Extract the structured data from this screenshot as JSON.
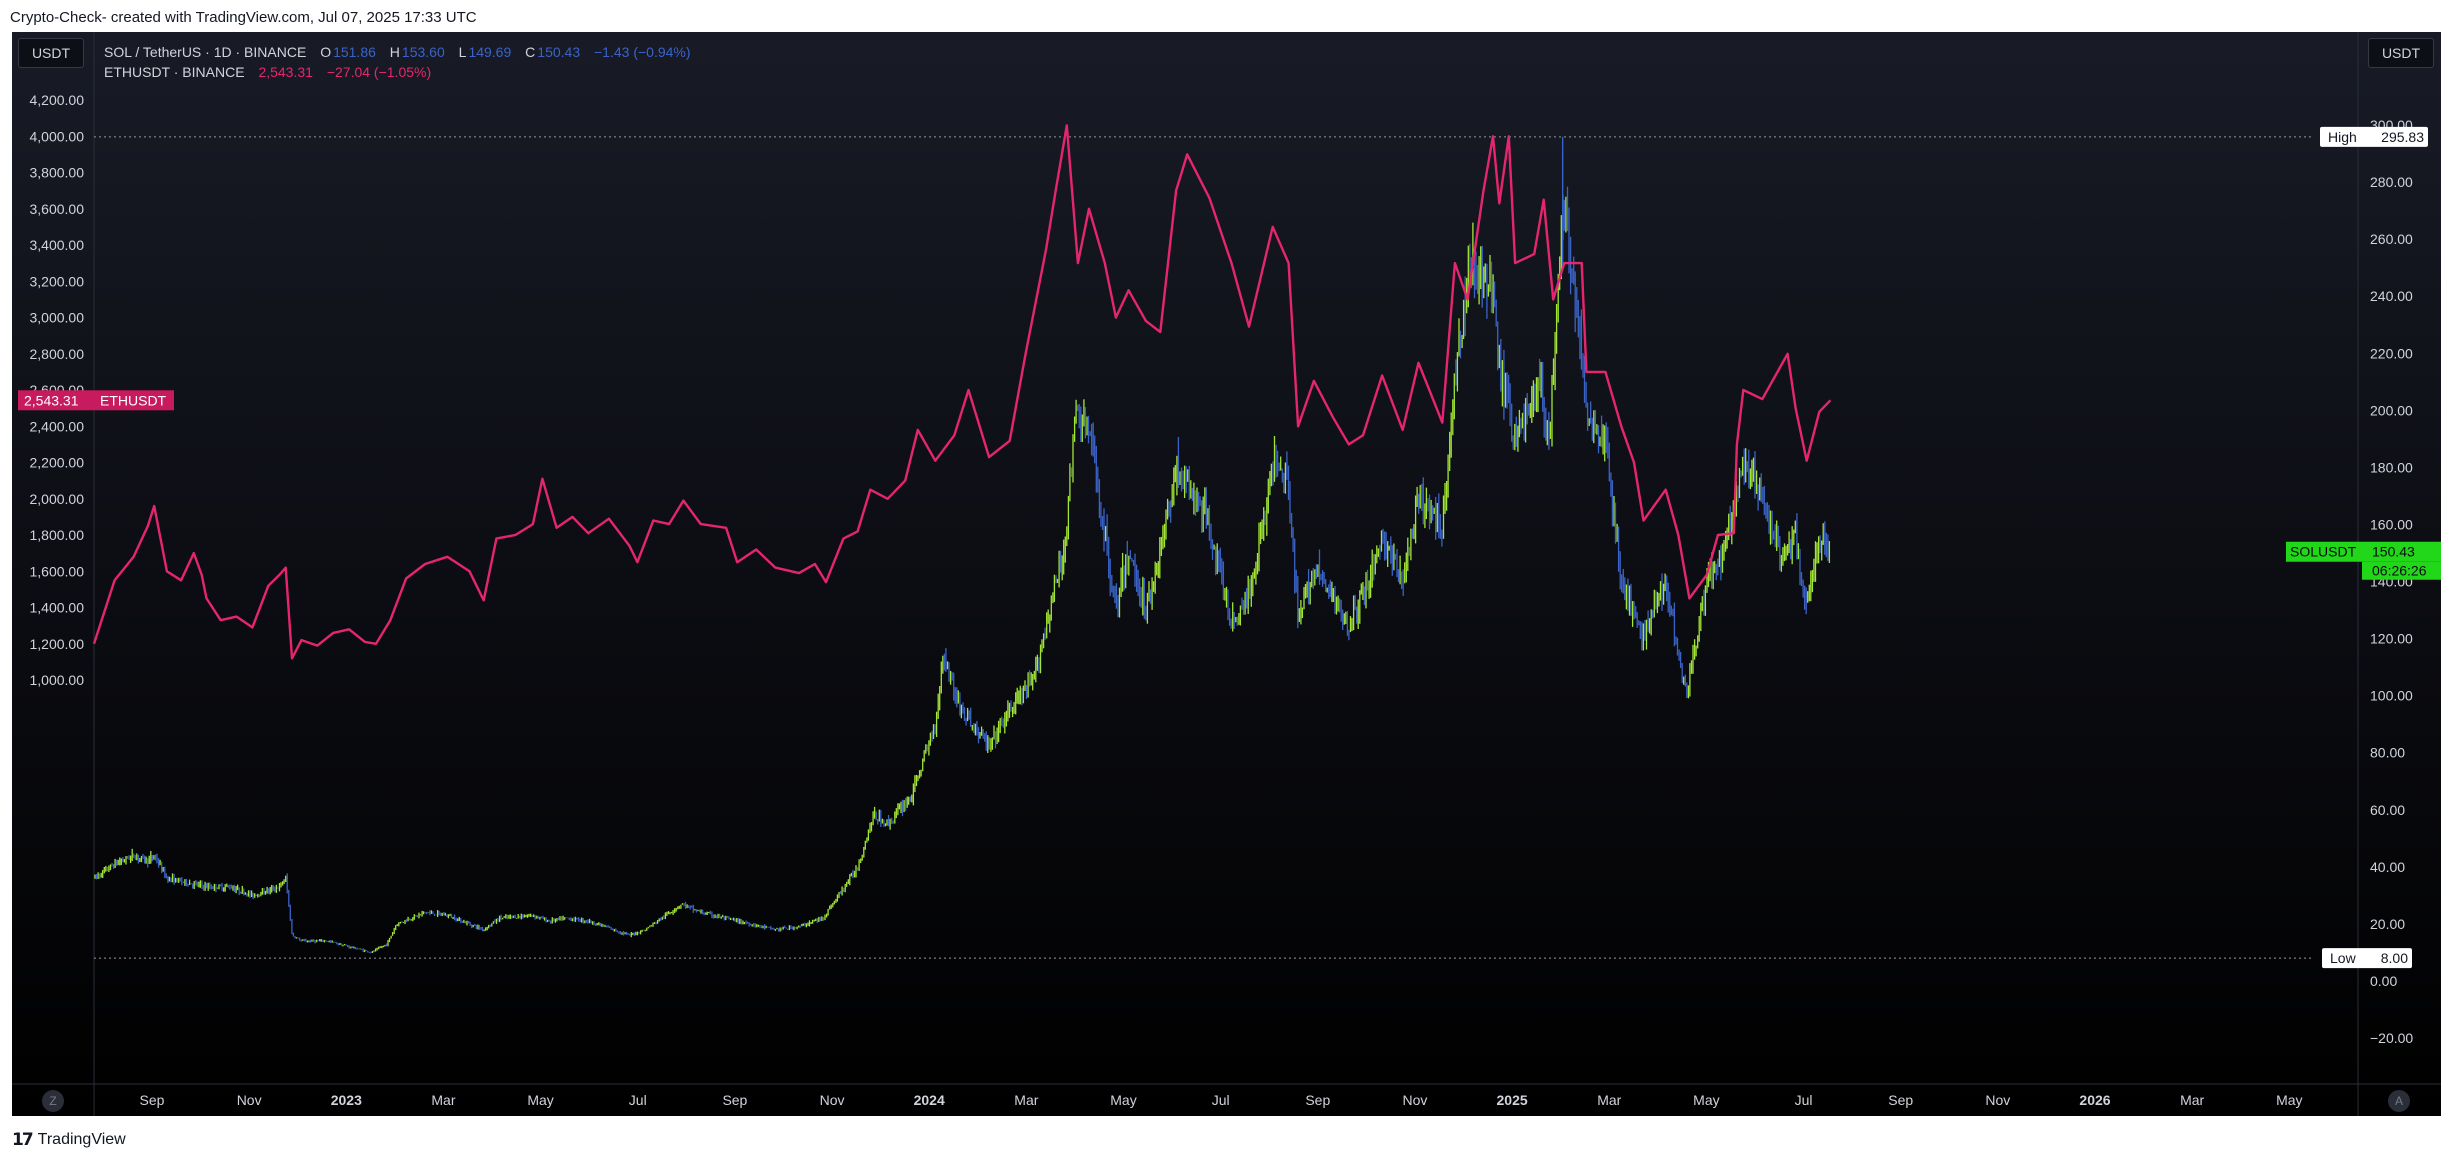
{
  "header": {
    "caption": "Crypto-Check- created with TradingView.com, Jul 07, 2025 17:33 UTC"
  },
  "currency_badges": {
    "left": "USDT",
    "right": "USDT"
  },
  "legend": {
    "sol": {
      "name": "SOL / TetherUS · 1D · BINANCE",
      "o_label": "O",
      "o_value": "151.86",
      "h_label": "H",
      "h_value": "153.60",
      "l_label": "L",
      "l_value": "149.69",
      "c_label": "C",
      "c_value": "150.43",
      "change": "−1.43 (−0.94%)"
    },
    "eth": {
      "name": "ETHUSDT · BINANCE",
      "last": "2,543.31",
      "change": "−27.04 (−1.05%)"
    }
  },
  "markers": {
    "high_label": "High",
    "high_value": "295.83",
    "low_label": "Low",
    "low_value": "8.00",
    "eth_price_tag": "2,543.31",
    "eth_ticker_tag": "ETHUSDT",
    "sol_ticker_tag": "SOLUSDT",
    "sol_price_tag": "150.43",
    "sol_countdown": "06:26:26"
  },
  "buttons": {
    "left_corner": "Z",
    "right_corner": "A"
  },
  "footer": {
    "brand": "TradingView"
  },
  "colors": {
    "background_top": "#181b26",
    "background_bottom": "#000000",
    "eth_line": "#e5266f",
    "sol_up": "#a3e635",
    "sol_down": "#3a63c8",
    "sol_tag": "#22d61a",
    "eth_tag": "#c81a5e",
    "axis_text": "#d1d4dc"
  },
  "chart_data": {
    "type": "line",
    "x_ticks": [
      "Sep",
      "Nov",
      "2023",
      "Mar",
      "May",
      "Jul",
      "Sep",
      "Nov",
      "2024",
      "Mar",
      "May",
      "Jul",
      "Sep",
      "Nov",
      "2025",
      "Mar",
      "May",
      "Jul",
      "Sep",
      "Nov",
      "2026",
      "Mar",
      "May"
    ],
    "left_axis": {
      "label": "USDT",
      "ticks": [
        "4,200.00",
        "4,000.00",
        "3,800.00",
        "3,600.00",
        "3,400.00",
        "3,200.00",
        "3,000.00",
        "2,800.00",
        "2,600.00",
        "2,400.00",
        "2,200.00",
        "2,000.00",
        "1,800.00",
        "1,600.00",
        "1,400.00",
        "1,200.00",
        "1,000.00"
      ],
      "ylim": [
        850,
        4250
      ]
    },
    "right_axis": {
      "label": "USDT",
      "ticks": [
        "300.00",
        "280.00",
        "260.00",
        "240.00",
        "220.00",
        "200.00",
        "180.00",
        "160.00",
        "140.00",
        "120.00",
        "100.00",
        "80.00",
        "60.00",
        "40.00",
        "20.00",
        "0.00",
        "−20.00"
      ],
      "ylim": [
        -20,
        300
      ]
    },
    "series": [
      {
        "name": "ETHUSDT",
        "axis": "left",
        "points": [
          [
            "2022-07-07",
            1200
          ],
          [
            "2022-07-20",
            1550
          ],
          [
            "2022-08-01",
            1680
          ],
          [
            "2022-08-10",
            1850
          ],
          [
            "2022-08-14",
            1960
          ],
          [
            "2022-08-22",
            1600
          ],
          [
            "2022-08-31",
            1550
          ],
          [
            "2022-09-08",
            1700
          ],
          [
            "2022-09-13",
            1580
          ],
          [
            "2022-09-16",
            1450
          ],
          [
            "2022-09-25",
            1330
          ],
          [
            "2022-10-05",
            1350
          ],
          [
            "2022-10-15",
            1290
          ],
          [
            "2022-10-25",
            1520
          ],
          [
            "2022-11-01",
            1580
          ],
          [
            "2022-11-05",
            1620
          ],
          [
            "2022-11-09",
            1120
          ],
          [
            "2022-11-15",
            1220
          ],
          [
            "2022-11-25",
            1190
          ],
          [
            "2022-12-05",
            1260
          ],
          [
            "2022-12-15",
            1280
          ],
          [
            "2022-12-25",
            1210
          ],
          [
            "2023-01-01",
            1200
          ],
          [
            "2023-01-10",
            1330
          ],
          [
            "2023-01-20",
            1560
          ],
          [
            "2023-02-01",
            1640
          ],
          [
            "2023-02-15",
            1680
          ],
          [
            "2023-03-01",
            1600
          ],
          [
            "2023-03-10",
            1440
          ],
          [
            "2023-03-18",
            1780
          ],
          [
            "2023-03-30",
            1800
          ],
          [
            "2023-04-10",
            1860
          ],
          [
            "2023-04-16",
            2110
          ],
          [
            "2023-04-25",
            1840
          ],
          [
            "2023-05-05",
            1900
          ],
          [
            "2023-05-15",
            1810
          ],
          [
            "2023-05-28",
            1890
          ],
          [
            "2023-06-10",
            1740
          ],
          [
            "2023-06-15",
            1650
          ],
          [
            "2023-06-25",
            1880
          ],
          [
            "2023-07-05",
            1860
          ],
          [
            "2023-07-14",
            1990
          ],
          [
            "2023-07-25",
            1860
          ],
          [
            "2023-08-10",
            1840
          ],
          [
            "2023-08-17",
            1650
          ],
          [
            "2023-08-29",
            1720
          ],
          [
            "2023-09-10",
            1620
          ],
          [
            "2023-09-25",
            1590
          ],
          [
            "2023-10-05",
            1640
          ],
          [
            "2023-10-12",
            1540
          ],
          [
            "2023-10-23",
            1780
          ],
          [
            "2023-11-01",
            1820
          ],
          [
            "2023-11-09",
            2050
          ],
          [
            "2023-11-20",
            2000
          ],
          [
            "2023-12-01",
            2100
          ],
          [
            "2023-12-09",
            2380
          ],
          [
            "2023-12-20",
            2210
          ],
          [
            "2024-01-01",
            2350
          ],
          [
            "2024-01-10",
            2600
          ],
          [
            "2024-01-23",
            2230
          ],
          [
            "2024-02-05",
            2320
          ],
          [
            "2024-02-15",
            2800
          ],
          [
            "2024-02-28",
            3380
          ],
          [
            "2024-03-05",
            3700
          ],
          [
            "2024-03-12",
            4060
          ],
          [
            "2024-03-19",
            3300
          ],
          [
            "2024-03-26",
            3600
          ],
          [
            "2024-04-05",
            3300
          ],
          [
            "2024-04-12",
            3000
          ],
          [
            "2024-04-20",
            3150
          ],
          [
            "2024-05-01",
            2980
          ],
          [
            "2024-05-10",
            2920
          ],
          [
            "2024-05-20",
            3700
          ],
          [
            "2024-05-27",
            3900
          ],
          [
            "2024-06-10",
            3660
          ],
          [
            "2024-06-24",
            3300
          ],
          [
            "2024-07-05",
            2950
          ],
          [
            "2024-07-20",
            3500
          ],
          [
            "2024-07-30",
            3300
          ],
          [
            "2024-08-05",
            2400
          ],
          [
            "2024-08-15",
            2650
          ],
          [
            "2024-08-27",
            2450
          ],
          [
            "2024-09-06",
            2300
          ],
          [
            "2024-09-15",
            2350
          ],
          [
            "2024-09-27",
            2680
          ],
          [
            "2024-10-10",
            2380
          ],
          [
            "2024-10-20",
            2750
          ],
          [
            "2024-11-04",
            2420
          ],
          [
            "2024-11-12",
            3300
          ],
          [
            "2024-11-20",
            3100
          ],
          [
            "2024-11-30",
            3700
          ],
          [
            "2024-12-06",
            4000
          ],
          [
            "2024-12-10",
            3630
          ],
          [
            "2024-12-16",
            4000
          ],
          [
            "2024-12-20",
            3300
          ],
          [
            "2025-01-01",
            3350
          ],
          [
            "2025-01-07",
            3650
          ],
          [
            "2025-01-13",
            3100
          ],
          [
            "2025-01-20",
            3300
          ],
          [
            "2025-01-31",
            3300
          ],
          [
            "2025-02-03",
            2700
          ],
          [
            "2025-02-15",
            2700
          ],
          [
            "2025-02-25",
            2400
          ],
          [
            "2025-03-05",
            2200
          ],
          [
            "2025-03-11",
            1880
          ],
          [
            "2025-03-25",
            2050
          ],
          [
            "2025-04-02",
            1800
          ],
          [
            "2025-04-09",
            1450
          ],
          [
            "2025-04-20",
            1580
          ],
          [
            "2025-04-27",
            1800
          ],
          [
            "2025-05-07",
            1810
          ],
          [
            "2025-05-09",
            2300
          ],
          [
            "2025-05-13",
            2600
          ],
          [
            "2025-05-25",
            2550
          ],
          [
            "2025-06-10",
            2800
          ],
          [
            "2025-06-15",
            2500
          ],
          [
            "2025-06-22",
            2210
          ],
          [
            "2025-06-30",
            2480
          ],
          [
            "2025-07-07",
            2543.31
          ]
        ]
      },
      {
        "name": "SOLUSDT",
        "axis": "right",
        "points": [
          [
            "2022-07-07",
            36
          ],
          [
            "2022-07-20",
            41
          ],
          [
            "2022-08-01",
            44
          ],
          [
            "2022-08-10",
            42
          ],
          [
            "2022-08-14",
            44
          ],
          [
            "2022-08-22",
            36
          ],
          [
            "2022-09-08",
            34
          ],
          [
            "2022-09-16",
            33
          ],
          [
            "2022-10-01",
            33
          ],
          [
            "2022-10-15",
            30
          ],
          [
            "2022-11-01",
            33
          ],
          [
            "2022-11-05",
            36
          ],
          [
            "2022-11-09",
            16
          ],
          [
            "2022-11-15",
            14
          ],
          [
            "2022-12-01",
            14
          ],
          [
            "2022-12-15",
            12
          ],
          [
            "2022-12-29",
            10
          ],
          [
            "2023-01-08",
            13
          ],
          [
            "2023-01-14",
            20
          ],
          [
            "2023-02-01",
            24
          ],
          [
            "2023-02-15",
            23
          ],
          [
            "2023-03-10",
            18
          ],
          [
            "2023-03-20",
            22
          ],
          [
            "2023-04-10",
            23
          ],
          [
            "2023-04-20",
            21
          ],
          [
            "2023-05-01",
            22
          ],
          [
            "2023-05-15",
            21
          ],
          [
            "2023-06-10",
            16
          ],
          [
            "2023-06-20",
            18
          ],
          [
            "2023-07-13",
            27
          ],
          [
            "2023-07-25",
            24
          ],
          [
            "2023-08-17",
            21
          ],
          [
            "2023-09-10",
            18
          ],
          [
            "2023-09-25",
            19
          ],
          [
            "2023-10-10",
            22
          ],
          [
            "2023-10-20",
            30
          ],
          [
            "2023-11-01",
            40
          ],
          [
            "2023-11-11",
            58
          ],
          [
            "2023-11-20",
            55
          ],
          [
            "2023-12-05",
            65
          ],
          [
            "2023-12-20",
            90
          ],
          [
            "2023-12-25",
            115
          ],
          [
            "2024-01-05",
            95
          ],
          [
            "2024-01-23",
            82
          ],
          [
            "2024-02-05",
            95
          ],
          [
            "2024-02-20",
            105
          ],
          [
            "2024-03-01",
            130
          ],
          [
            "2024-03-10",
            150
          ],
          [
            "2024-03-18",
            200
          ],
          [
            "2024-03-27",
            190
          ],
          [
            "2024-04-12",
            130
          ],
          [
            "2024-04-20",
            150
          ],
          [
            "2024-05-01",
            130
          ],
          [
            "2024-05-10",
            150
          ],
          [
            "2024-05-20",
            180
          ],
          [
            "2024-06-10",
            160
          ],
          [
            "2024-06-24",
            125
          ],
          [
            "2024-07-05",
            135
          ],
          [
            "2024-07-22",
            185
          ],
          [
            "2024-07-30",
            175
          ],
          [
            "2024-08-05",
            125
          ],
          [
            "2024-08-15",
            145
          ],
          [
            "2024-09-06",
            125
          ],
          [
            "2024-09-15",
            135
          ],
          [
            "2024-09-27",
            155
          ],
          [
            "2024-10-10",
            140
          ],
          [
            "2024-10-20",
            168
          ],
          [
            "2024-11-04",
            160
          ],
          [
            "2024-11-12",
            210
          ],
          [
            "2024-11-22",
            255
          ],
          [
            "2024-12-06",
            240
          ],
          [
            "2024-12-10",
            215
          ],
          [
            "2024-12-20",
            190
          ],
          [
            "2025-01-05",
            210
          ],
          [
            "2025-01-10",
            185
          ],
          [
            "2025-01-19",
            270
          ],
          [
            "2025-01-25",
            250
          ],
          [
            "2025-02-03",
            200
          ],
          [
            "2025-02-15",
            190
          ],
          [
            "2025-02-25",
            140
          ],
          [
            "2025-03-10",
            120
          ],
          [
            "2025-03-25",
            140
          ],
          [
            "2025-04-07",
            100
          ],
          [
            "2025-04-20",
            140
          ],
          [
            "2025-05-01",
            150
          ],
          [
            "2025-05-13",
            180
          ],
          [
            "2025-05-25",
            170
          ],
          [
            "2025-06-05",
            150
          ],
          [
            "2025-06-15",
            155
          ],
          [
            "2025-06-22",
            130
          ],
          [
            "2025-06-30",
            155
          ],
          [
            "2025-07-07",
            150.43
          ]
        ]
      }
    ],
    "high": 295.83,
    "low": 8.0,
    "grid": false,
    "legend_position": "top-left"
  }
}
